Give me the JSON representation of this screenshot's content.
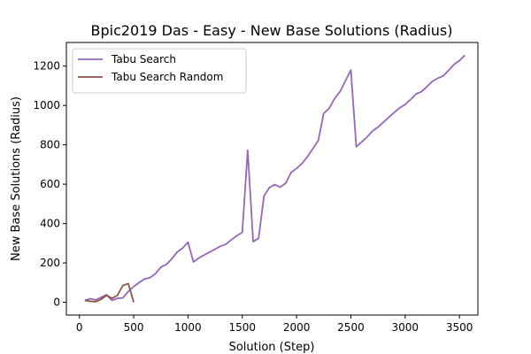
{
  "chart_data": {
    "type": "line",
    "title": "Bpic2019 Das - Easy - New Base Solutions (Radius)",
    "xlabel": "Solution (Step)",
    "ylabel": "New Base Solutions (Radius)",
    "xlim": [
      -120,
      3670
    ],
    "ylim": [
      -65,
      1320
    ],
    "xticks": [
      0,
      500,
      1000,
      1500,
      2000,
      2500,
      3000,
      3500
    ],
    "yticks": [
      0,
      200,
      400,
      600,
      800,
      1000,
      1200
    ],
    "grid": false,
    "legend_position": "top-left",
    "series": [
      {
        "name": "Tabu Search",
        "color": "#9467bd",
        "x": [
          50,
          100,
          150,
          200,
          250,
          300,
          350,
          400,
          450,
          500,
          550,
          600,
          650,
          700,
          750,
          800,
          850,
          900,
          950,
          1000,
          1050,
          1100,
          1150,
          1200,
          1250,
          1300,
          1350,
          1400,
          1450,
          1500,
          1550,
          1600,
          1650,
          1700,
          1750,
          1800,
          1850,
          1900,
          1950,
          2000,
          2050,
          2100,
          2150,
          2200,
          2250,
          2300,
          2350,
          2400,
          2450,
          2500,
          2550,
          2600,
          2650,
          2700,
          2750,
          2800,
          2850,
          2900,
          2950,
          3000,
          3050,
          3100,
          3150,
          3200,
          3250,
          3300,
          3350,
          3400,
          3450,
          3500,
          3550
        ],
        "y": [
          10,
          18,
          12,
          25,
          38,
          10,
          20,
          22,
          55,
          80,
          100,
          118,
          125,
          145,
          178,
          192,
          220,
          255,
          275,
          305,
          205,
          225,
          240,
          255,
          270,
          285,
          295,
          318,
          338,
          355,
          772,
          308,
          325,
          540,
          583,
          598,
          585,
          605,
          660,
          680,
          705,
          740,
          780,
          822,
          960,
          985,
          1035,
          1070,
          1125,
          1180,
          790,
          815,
          840,
          870,
          890,
          915,
          940,
          965,
          988,
          1005,
          1030,
          1058,
          1070,
          1095,
          1122,
          1138,
          1150,
          1178,
          1208,
          1228,
          1255
        ]
      },
      {
        "name": "Tabu Search Random",
        "color": "#8c564b",
        "x": [
          50,
          100,
          150,
          200,
          250,
          300,
          350,
          400,
          450,
          500
        ],
        "y": [
          10,
          5,
          3,
          15,
          35,
          20,
          35,
          85,
          95,
          0
        ]
      }
    ]
  }
}
